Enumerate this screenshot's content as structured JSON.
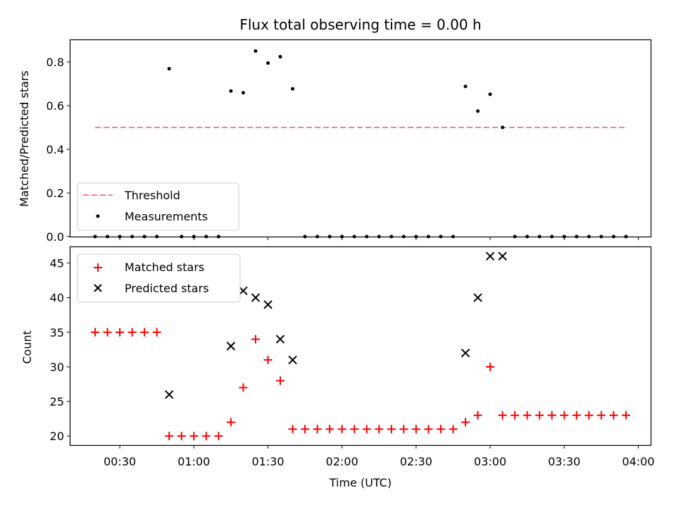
{
  "chart_data": [
    {
      "type": "scatter",
      "title": "Flux total observing time = 0.00 h",
      "xlabel": "",
      "ylabel": "Matched/Predicted stars",
      "ylim": [
        0,
        0.9
      ],
      "yticks": [
        "0.0",
        "0.2",
        "0.4",
        "0.6",
        "0.8"
      ],
      "legend": {
        "placement": "lower-left",
        "entries": [
          "Threshold",
          "Measurements"
        ]
      },
      "threshold": {
        "name": "Threshold",
        "value": 0.5,
        "x_start": "00:20",
        "x_end": "03:55",
        "color": "#ff7f7f",
        "style": "dashed"
      },
      "series": [
        {
          "name": "Measurements",
          "color": "#000000",
          "points": [
            [
              "00:20",
              0
            ],
            [
              "00:25",
              0
            ],
            [
              "00:30",
              0
            ],
            [
              "00:35",
              0
            ],
            [
              "00:40",
              0
            ],
            [
              "00:45",
              0
            ],
            [
              "00:50",
              0.769
            ],
            [
              "00:55",
              0
            ],
            [
              "01:00",
              0
            ],
            [
              "01:05",
              0
            ],
            [
              "01:10",
              0
            ],
            [
              "01:15",
              0.667
            ],
            [
              "01:20",
              0.659
            ],
            [
              "01:25",
              0.85
            ],
            [
              "01:30",
              0.795
            ],
            [
              "01:35",
              0.824
            ],
            [
              "01:40",
              0.677
            ],
            [
              "01:45",
              0
            ],
            [
              "01:50",
              0
            ],
            [
              "01:55",
              0
            ],
            [
              "02:00",
              0
            ],
            [
              "02:05",
              0
            ],
            [
              "02:10",
              0
            ],
            [
              "02:15",
              0
            ],
            [
              "02:20",
              0
            ],
            [
              "02:25",
              0
            ],
            [
              "02:30",
              0
            ],
            [
              "02:35",
              0
            ],
            [
              "02:40",
              0
            ],
            [
              "02:45",
              0
            ],
            [
              "02:50",
              0.688
            ],
            [
              "02:55",
              0.575
            ],
            [
              "03:00",
              0.652
            ],
            [
              "03:05",
              0.5
            ],
            [
              "03:10",
              0
            ],
            [
              "03:15",
              0
            ],
            [
              "03:20",
              0
            ],
            [
              "03:25",
              0
            ],
            [
              "03:30",
              0
            ],
            [
              "03:35",
              0
            ],
            [
              "03:40",
              0
            ],
            [
              "03:45",
              0
            ],
            [
              "03:50",
              0
            ],
            [
              "03:55",
              0
            ]
          ]
        }
      ]
    },
    {
      "type": "scatter",
      "title": "",
      "xlabel": "Time (UTC)",
      "ylabel": "Count",
      "xlim": [
        "00:10",
        "04:05"
      ],
      "ylim": [
        18.7,
        47.3
      ],
      "xticks": [
        "00:30",
        "01:00",
        "01:30",
        "02:00",
        "02:30",
        "03:00",
        "03:30",
        "04:00"
      ],
      "yticks": [
        "20",
        "25",
        "30",
        "35",
        "40",
        "45"
      ],
      "legend": {
        "placement": "top-left",
        "entries": [
          "Matched stars",
          "Predicted stars"
        ]
      },
      "series": [
        {
          "name": "Matched stars",
          "marker": "+",
          "color": "#ff0000",
          "points": [
            [
              "00:20",
              35
            ],
            [
              "00:25",
              35
            ],
            [
              "00:30",
              35
            ],
            [
              "00:35",
              35
            ],
            [
              "00:40",
              35
            ],
            [
              "00:45",
              35
            ],
            [
              "00:50",
              20
            ],
            [
              "00:55",
              20
            ],
            [
              "01:00",
              20
            ],
            [
              "01:05",
              20
            ],
            [
              "01:10",
              20
            ],
            [
              "01:15",
              22
            ],
            [
              "01:20",
              27
            ],
            [
              "01:25",
              34
            ],
            [
              "01:30",
              31
            ],
            [
              "01:35",
              28
            ],
            [
              "01:40",
              21
            ],
            [
              "01:45",
              21
            ],
            [
              "01:50",
              21
            ],
            [
              "01:55",
              21
            ],
            [
              "02:00",
              21
            ],
            [
              "02:05",
              21
            ],
            [
              "02:10",
              21
            ],
            [
              "02:15",
              21
            ],
            [
              "02:20",
              21
            ],
            [
              "02:25",
              21
            ],
            [
              "02:30",
              21
            ],
            [
              "02:35",
              21
            ],
            [
              "02:40",
              21
            ],
            [
              "02:45",
              21
            ],
            [
              "02:50",
              22
            ],
            [
              "02:55",
              23
            ],
            [
              "03:00",
              30
            ],
            [
              "03:05",
              23
            ],
            [
              "03:10",
              23
            ],
            [
              "03:15",
              23
            ],
            [
              "03:20",
              23
            ],
            [
              "03:25",
              23
            ],
            [
              "03:30",
              23
            ],
            [
              "03:35",
              23
            ],
            [
              "03:40",
              23
            ],
            [
              "03:45",
              23
            ],
            [
              "03:50",
              23
            ],
            [
              "03:55",
              23
            ]
          ]
        },
        {
          "name": "Predicted stars",
          "marker": "x",
          "color": "#000000",
          "points": [
            [
              "00:50",
              26
            ],
            [
              "01:15",
              33
            ],
            [
              "01:20",
              41
            ],
            [
              "01:25",
              40
            ],
            [
              "01:30",
              39
            ],
            [
              "01:35",
              34
            ],
            [
              "01:40",
              31
            ],
            [
              "02:50",
              32
            ],
            [
              "02:55",
              40
            ],
            [
              "03:00",
              46
            ],
            [
              "03:05",
              46
            ]
          ]
        }
      ]
    }
  ]
}
